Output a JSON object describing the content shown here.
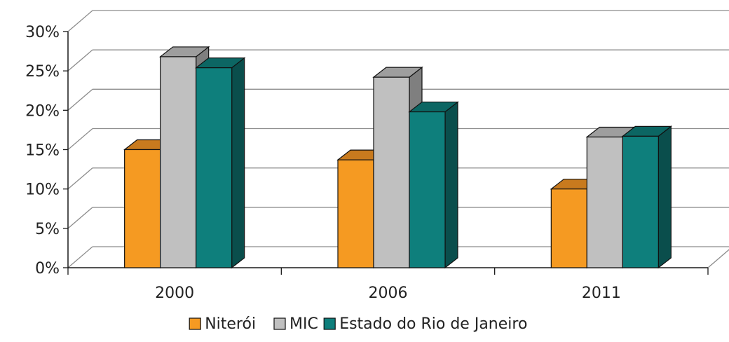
{
  "chart_data": {
    "type": "bar",
    "categories": [
      "2000",
      "2006",
      "2011"
    ],
    "series": [
      {
        "name": "Niterói",
        "values": [
          15.0,
          13.7,
          10.0
        ]
      },
      {
        "name": "MIC",
        "values": [
          26.8,
          24.2,
          16.6
        ]
      },
      {
        "name": "Estado do Rio de Janeiro",
        "values": [
          25.4,
          19.8,
          16.7
        ]
      }
    ],
    "ylim": [
      0,
      30
    ],
    "ytick_labels": [
      "0%",
      "5%",
      "10%",
      "15%",
      "20%",
      "25%",
      "30%"
    ],
    "y_unit": "%",
    "grid": true,
    "three_d": true,
    "legend_position": "bottom",
    "colors": {
      "Niterói": {
        "front": "#F59A22",
        "side": "#7A4B10",
        "top": "#C87A1E"
      },
      "MIC": {
        "front": "#C0C0C0",
        "side": "#7F7F7F",
        "top": "#9E9E9E"
      },
      "Estado do Rio de Janeiro": {
        "front": "#0E7F7C",
        "side": "#0A4E4C",
        "top": "#0C6663"
      },
      "grid": "#8C8C8C",
      "axis": "#1A1A1A"
    }
  }
}
